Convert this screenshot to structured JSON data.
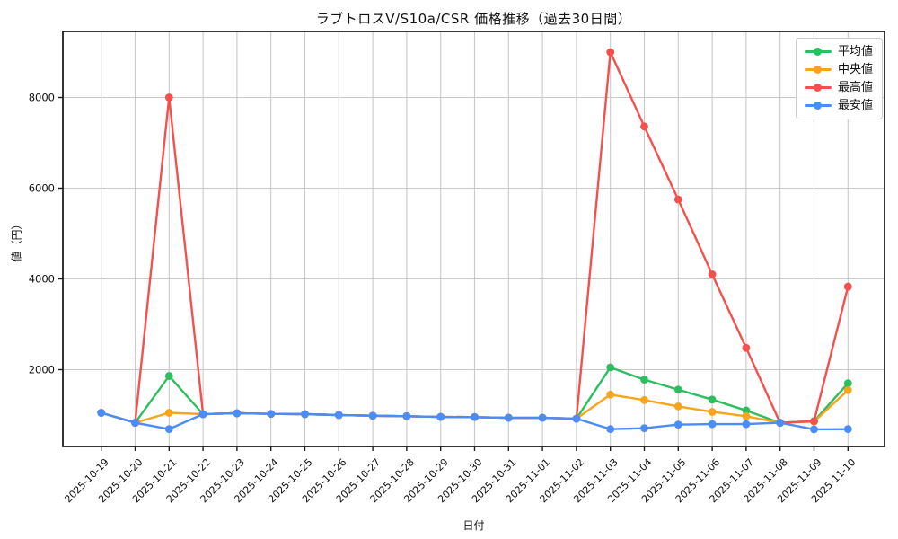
{
  "figure": {
    "title": "ラブトロスV/S10a/CSR 価格推移（過去30日間）",
    "xlabel": "日付",
    "ylabel": "値（円）"
  },
  "legend": {
    "position": "upper right",
    "items": [
      {
        "label": "平均値",
        "color": "#2dbe60"
      },
      {
        "label": "中央値",
        "color": "#f7a51d"
      },
      {
        "label": "最高値",
        "color": "#f5504e"
      },
      {
        "label": "最安値",
        "color": "#4b8df8"
      }
    ]
  },
  "colors": {
    "grid": "#c9c9c9",
    "spine": "#1f1f1f",
    "tick_label": "#111111",
    "background": "#ffffff"
  },
  "chart_data": {
    "type": "line",
    "title": "ラブトロスV/S10a/CSR 価格推移（過去30日間）",
    "xlabel": "日付",
    "ylabel": "値（円）",
    "grid": true,
    "legend_position": "upper right",
    "yticks": [
      2000,
      4000,
      6000,
      8000
    ],
    "ylim": [
      320,
      9450
    ],
    "x": [
      "2025-10-19",
      "2025-10-20",
      "2025-10-21",
      "2025-10-22",
      "2025-10-23",
      "2025-10-24",
      "2025-10-25",
      "2025-10-26",
      "2025-10-27",
      "2025-10-28",
      "2025-10-29",
      "2025-10-30",
      "2025-10-31",
      "2025-11-01",
      "2025-11-02",
      "2025-11-03",
      "2025-11-04",
      "2025-11-05",
      "2025-11-06",
      "2025-11-07",
      "2025-11-08",
      "2025-11-09",
      "2025-11-10"
    ],
    "series": [
      {
        "name": "平均値",
        "color": "#2dbe60",
        "values": [
          1050,
          830,
          1860,
          1020,
          1040,
          1025,
          1020,
          1000,
          985,
          975,
          960,
          955,
          940,
          940,
          920,
          2050,
          1780,
          1560,
          1340,
          1100,
          830,
          865,
          1700
        ]
      },
      {
        "name": "中央値",
        "color": "#f7a51d",
        "values": [
          1050,
          830,
          1050,
          1020,
          1040,
          1025,
          1020,
          1000,
          985,
          975,
          960,
          955,
          940,
          940,
          920,
          1450,
          1330,
          1190,
          1070,
          975,
          830,
          855,
          1550
        ]
      },
      {
        "name": "最高値",
        "color": "#f5504e",
        "values": [
          1050,
          830,
          8000,
          1020,
          1040,
          1025,
          1020,
          1000,
          985,
          975,
          960,
          955,
          940,
          940,
          920,
          9000,
          7360,
          5750,
          4100,
          2480,
          830,
          865,
          3830
        ]
      },
      {
        "name": "最安値",
        "color": "#4b8df8",
        "values": [
          1050,
          830,
          690,
          1020,
          1040,
          1025,
          1020,
          1000,
          985,
          975,
          960,
          955,
          940,
          940,
          920,
          690,
          710,
          790,
          800,
          800,
          830,
          685,
          690
        ]
      }
    ]
  }
}
